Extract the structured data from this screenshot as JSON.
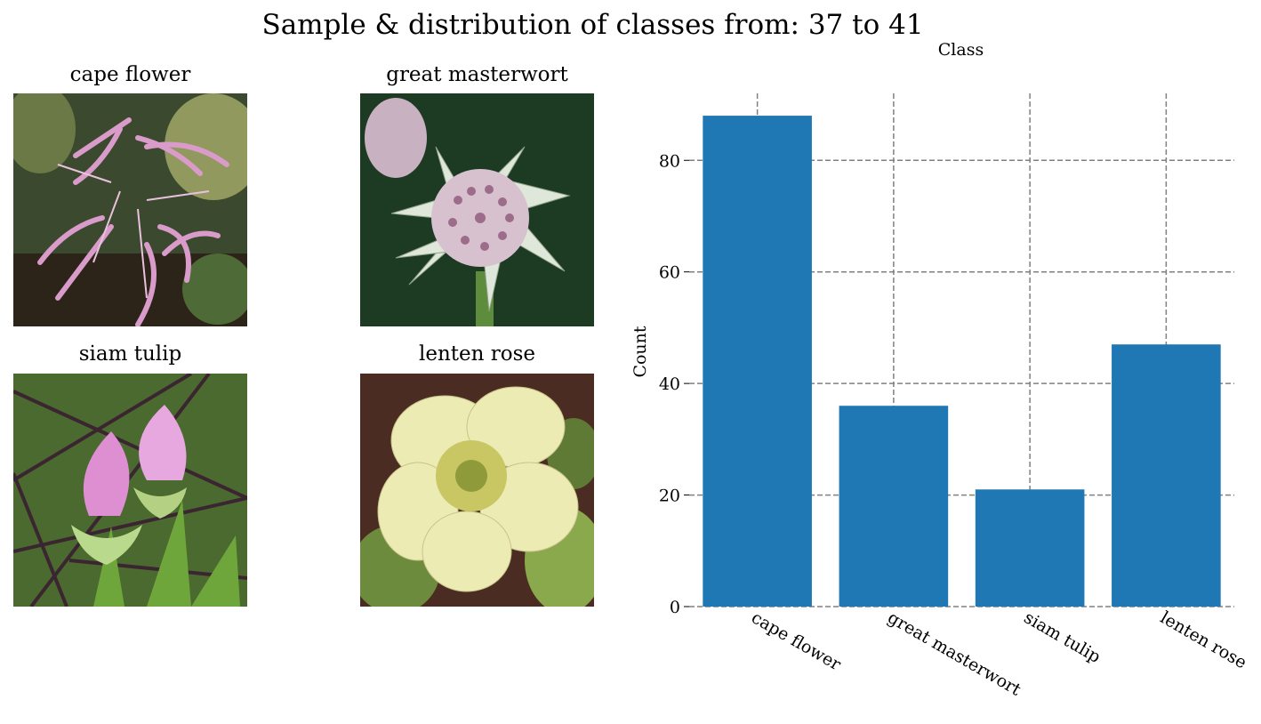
{
  "suptitle": "Sample & distribution of classes from: 37 to 41",
  "samples": [
    {
      "title": "cape flower"
    },
    {
      "title": "great masterwort"
    },
    {
      "title": "siam tulip"
    },
    {
      "title": "lenten rose"
    }
  ],
  "colors": {
    "bar": "#1f77b4",
    "grid": "#808080"
  },
  "chart_data": {
    "type": "bar",
    "title": "Class",
    "xlabel": "",
    "ylabel": "Count",
    "categories": [
      "cape flower",
      "great masterwort",
      "siam tulip",
      "lenten rose"
    ],
    "values": [
      88,
      36,
      21,
      47
    ],
    "ylim": [
      0,
      92
    ],
    "yticks": [
      0,
      20,
      40,
      60,
      80
    ],
    "grid": true,
    "grid_style": "dashed"
  }
}
